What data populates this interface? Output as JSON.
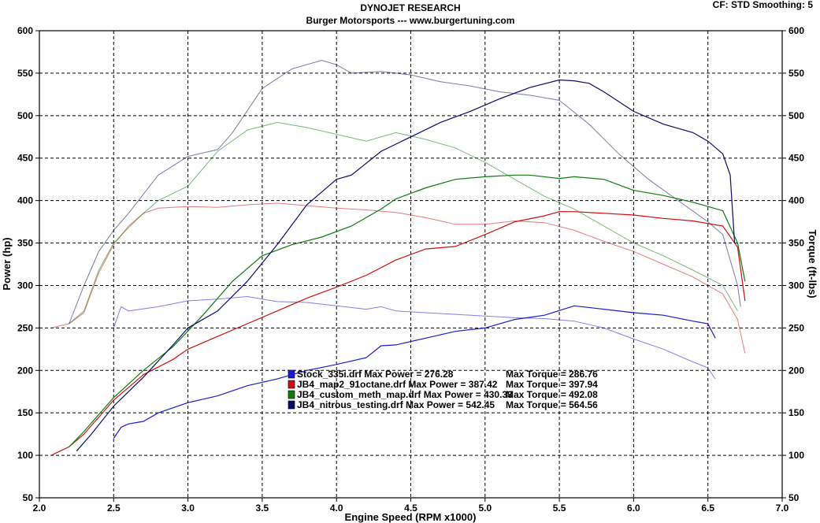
{
  "header": {
    "title": "DYNOJET RESEARCH",
    "subtitle": "Burger Motorsports --- www.burgertuning.com",
    "cf_label": "CF: STD  Smoothing: 5"
  },
  "chart_data": {
    "type": "line",
    "xlabel": "Engine Speed (RPM x1000)",
    "ylabel": "Power (hp)",
    "y2label": "Torque (ft-lbs)",
    "xlim": [
      2.0,
      7.0
    ],
    "ylim": [
      50,
      600
    ],
    "y2lim": [
      50,
      600
    ],
    "x_ticks": [
      "2.0",
      "2.5",
      "3.0",
      "3.5",
      "4.0",
      "4.5",
      "5.0",
      "5.5",
      "6.0",
      "6.5",
      "7.0"
    ],
    "y_ticks": [
      "50",
      "100",
      "150",
      "200",
      "250",
      "300",
      "350",
      "400",
      "450",
      "500",
      "550",
      "600"
    ],
    "grid": true,
    "legend_position": "center-bottom",
    "series": [
      {
        "name": "Stock_335i.drf",
        "color": "#1a1ad0",
        "power": [
          [
            2.5,
            120
          ],
          [
            2.55,
            133
          ],
          [
            2.6,
            137
          ],
          [
            2.7,
            140
          ],
          [
            2.8,
            150
          ],
          [
            2.9,
            156
          ],
          [
            3.0,
            162
          ],
          [
            3.2,
            170
          ],
          [
            3.4,
            182
          ],
          [
            3.6,
            190
          ],
          [
            3.8,
            200
          ],
          [
            4.0,
            207
          ],
          [
            4.2,
            215
          ],
          [
            4.3,
            229
          ],
          [
            4.4,
            230
          ],
          [
            4.6,
            238
          ],
          [
            4.8,
            246
          ],
          [
            5.0,
            250
          ],
          [
            5.2,
            260
          ],
          [
            5.4,
            265
          ],
          [
            5.6,
            276
          ],
          [
            5.8,
            272
          ],
          [
            6.0,
            268
          ],
          [
            6.2,
            265
          ],
          [
            6.4,
            258
          ],
          [
            6.5,
            255
          ],
          [
            6.55,
            238
          ]
        ],
        "torque": [
          [
            2.5,
            250
          ],
          [
            2.55,
            275
          ],
          [
            2.6,
            270
          ],
          [
            2.8,
            275
          ],
          [
            3.0,
            282
          ],
          [
            3.2,
            284
          ],
          [
            3.4,
            287
          ],
          [
            3.6,
            281
          ],
          [
            3.8,
            280
          ],
          [
            4.0,
            276
          ],
          [
            4.2,
            272
          ],
          [
            4.3,
            275
          ],
          [
            4.4,
            270
          ],
          [
            4.6,
            268
          ],
          [
            4.8,
            266
          ],
          [
            5.0,
            264
          ],
          [
            5.2,
            262
          ],
          [
            5.4,
            261
          ],
          [
            5.6,
            258
          ],
          [
            5.8,
            250
          ],
          [
            6.0,
            237
          ],
          [
            6.2,
            225
          ],
          [
            6.4,
            210
          ],
          [
            6.5,
            203
          ],
          [
            6.55,
            190
          ]
        ]
      },
      {
        "name": "JB4_map2_91octane.drf",
        "color": "#cc1111",
        "power": [
          [
            2.08,
            100
          ],
          [
            2.2,
            110
          ],
          [
            2.3,
            125
          ],
          [
            2.4,
            145
          ],
          [
            2.5,
            165
          ],
          [
            2.7,
            195
          ],
          [
            2.9,
            213
          ],
          [
            3.0,
            225
          ],
          [
            3.2,
            240
          ],
          [
            3.4,
            255
          ],
          [
            3.6,
            270
          ],
          [
            3.8,
            285
          ],
          [
            4.0,
            298
          ],
          [
            4.2,
            312
          ],
          [
            4.4,
            330
          ],
          [
            4.6,
            343
          ],
          [
            4.8,
            346
          ],
          [
            5.0,
            360
          ],
          [
            5.2,
            375
          ],
          [
            5.4,
            382
          ],
          [
            5.5,
            387
          ],
          [
            5.6,
            387
          ],
          [
            5.8,
            385
          ],
          [
            6.0,
            383
          ],
          [
            6.2,
            379
          ],
          [
            6.4,
            376
          ],
          [
            6.6,
            370
          ],
          [
            6.7,
            345
          ],
          [
            6.75,
            282
          ]
        ],
        "torque": [
          [
            2.08,
            250
          ],
          [
            2.2,
            255
          ],
          [
            2.3,
            268
          ],
          [
            2.4,
            315
          ],
          [
            2.5,
            348
          ],
          [
            2.6,
            370
          ],
          [
            2.7,
            385
          ],
          [
            2.8,
            391
          ],
          [
            3.0,
            393
          ],
          [
            3.2,
            392
          ],
          [
            3.4,
            395
          ],
          [
            3.6,
            397
          ],
          [
            3.8,
            394
          ],
          [
            4.0,
            391
          ],
          [
            4.2,
            389
          ],
          [
            4.4,
            386
          ],
          [
            4.6,
            380
          ],
          [
            4.8,
            372
          ],
          [
            5.0,
            372
          ],
          [
            5.2,
            376
          ],
          [
            5.4,
            374
          ],
          [
            5.6,
            365
          ],
          [
            5.8,
            352
          ],
          [
            6.0,
            340
          ],
          [
            6.2,
            325
          ],
          [
            6.4,
            310
          ],
          [
            6.6,
            290
          ],
          [
            6.7,
            260
          ],
          [
            6.75,
            220
          ]
        ]
      },
      {
        "name": "JB4_custom_meth_map.drf",
        "color": "#117a11",
        "power": [
          [
            2.2,
            110
          ],
          [
            2.3,
            128
          ],
          [
            2.4,
            148
          ],
          [
            2.5,
            168
          ],
          [
            2.7,
            200
          ],
          [
            2.9,
            228
          ],
          [
            3.1,
            265
          ],
          [
            3.3,
            305
          ],
          [
            3.5,
            335
          ],
          [
            3.7,
            348
          ],
          [
            3.9,
            357
          ],
          [
            4.1,
            370
          ],
          [
            4.3,
            390
          ],
          [
            4.4,
            402
          ],
          [
            4.6,
            415
          ],
          [
            4.8,
            425
          ],
          [
            5.0,
            428
          ],
          [
            5.2,
            430
          ],
          [
            5.3,
            430
          ],
          [
            5.5,
            426
          ],
          [
            5.6,
            428
          ],
          [
            5.8,
            425
          ],
          [
            6.0,
            412
          ],
          [
            6.2,
            406
          ],
          [
            6.4,
            398
          ],
          [
            6.6,
            388
          ],
          [
            6.7,
            350
          ],
          [
            6.75,
            305
          ]
        ],
        "torque": [
          [
            2.2,
            255
          ],
          [
            2.3,
            270
          ],
          [
            2.4,
            318
          ],
          [
            2.5,
            350
          ],
          [
            2.6,
            368
          ],
          [
            2.7,
            385
          ],
          [
            2.8,
            400
          ],
          [
            3.0,
            417
          ],
          [
            3.2,
            458
          ],
          [
            3.4,
            483
          ],
          [
            3.6,
            492
          ],
          [
            3.8,
            486
          ],
          [
            4.0,
            478
          ],
          [
            4.2,
            470
          ],
          [
            4.4,
            480
          ],
          [
            4.6,
            472
          ],
          [
            4.8,
            462
          ],
          [
            5.0,
            445
          ],
          [
            5.2,
            425
          ],
          [
            5.4,
            405
          ],
          [
            5.6,
            390
          ],
          [
            5.8,
            370
          ],
          [
            6.0,
            350
          ],
          [
            6.2,
            335
          ],
          [
            6.4,
            318
          ],
          [
            6.6,
            300
          ],
          [
            6.7,
            270
          ]
        ]
      },
      {
        "name": "JB4_nitrous_testing.drf",
        "color": "#0c0c66",
        "power": [
          [
            2.25,
            105
          ],
          [
            2.35,
            125
          ],
          [
            2.5,
            158
          ],
          [
            2.7,
            192
          ],
          [
            2.9,
            230
          ],
          [
            3.0,
            250
          ],
          [
            3.2,
            270
          ],
          [
            3.4,
            305
          ],
          [
            3.6,
            348
          ],
          [
            3.8,
            395
          ],
          [
            4.0,
            425
          ],
          [
            4.1,
            430
          ],
          [
            4.3,
            458
          ],
          [
            4.5,
            475
          ],
          [
            4.7,
            492
          ],
          [
            4.9,
            505
          ],
          [
            5.1,
            520
          ],
          [
            5.3,
            533
          ],
          [
            5.5,
            542
          ],
          [
            5.6,
            541
          ],
          [
            5.7,
            538
          ],
          [
            5.8,
            528
          ],
          [
            6.0,
            505
          ],
          [
            6.2,
            490
          ],
          [
            6.4,
            480
          ],
          [
            6.5,
            470
          ],
          [
            6.6,
            455
          ],
          [
            6.65,
            430
          ],
          [
            6.68,
            350
          ]
        ],
        "torque": [
          [
            2.2,
            255
          ],
          [
            2.3,
            300
          ],
          [
            2.4,
            340
          ],
          [
            2.5,
            365
          ],
          [
            2.6,
            385
          ],
          [
            2.8,
            430
          ],
          [
            3.0,
            452
          ],
          [
            3.2,
            460
          ],
          [
            3.3,
            480
          ],
          [
            3.5,
            532
          ],
          [
            3.7,
            555
          ],
          [
            3.9,
            565
          ],
          [
            4.0,
            560
          ],
          [
            4.1,
            550
          ],
          [
            4.3,
            552
          ],
          [
            4.5,
            548
          ],
          [
            4.7,
            540
          ],
          [
            4.9,
            535
          ],
          [
            5.1,
            528
          ],
          [
            5.3,
            524
          ],
          [
            5.5,
            518
          ],
          [
            5.7,
            490
          ],
          [
            5.9,
            455
          ],
          [
            6.1,
            425
          ],
          [
            6.3,
            400
          ],
          [
            6.5,
            375
          ],
          [
            6.6,
            360
          ],
          [
            6.7,
            300
          ],
          [
            6.72,
            275
          ]
        ]
      }
    ],
    "legend": [
      {
        "file": "Stock_335i.drf",
        "max_power_label": "Max Power = 276.28",
        "max_torque_label": "Max Torque = 286.76",
        "max_power": 276.28,
        "max_torque": 286.76
      },
      {
        "file": "JB4_map2_91octane.drf",
        "max_power_label": "Max Power = 387.42",
        "max_torque_label": "Max Torque = 397.94",
        "max_power": 387.42,
        "max_torque": 397.94
      },
      {
        "file": "JB4_custom_meth_map.drf",
        "max_power_label": "Max Power = 430.33",
        "max_torque_label": "Max Torque = 492.08",
        "max_power": 430.33,
        "max_torque": 492.08
      },
      {
        "file": "JB4_nitrous_testing.drf",
        "max_power_label": "Max Power = 542.45",
        "max_torque_label": "Max Torque = 564.56",
        "max_power": 542.45,
        "max_torque": 564.56
      }
    ]
  }
}
